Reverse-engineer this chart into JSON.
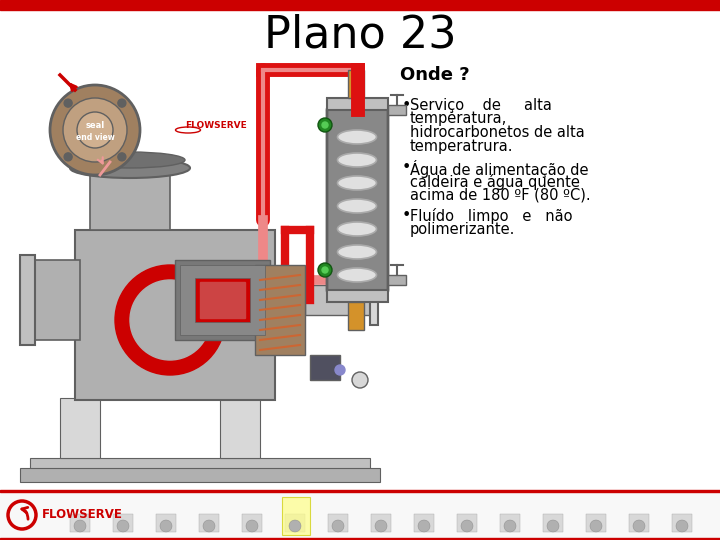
{
  "title": "Plano 23",
  "title_fontsize": 32,
  "title_color": "#000000",
  "subtitle": "Onde ?",
  "subtitle_fontsize": 13,
  "bullet1_line1": "Serviço    de     alta",
  "bullet1_line2": "temperatura,",
  "bullet1_line3": "hidrocarbonetos de alta",
  "bullet1_line4": "temperatrura.",
  "bullet2_line1": "Água de alimentação de",
  "bullet2_line2": "caldeira e água quente",
  "bullet2_line3": "acima de 180 ºF (80 ºC).",
  "bullet3_line1": "Fluído   limpo   e   não",
  "bullet3_line2": "polimerizante.",
  "bullet_fontsize": 10.5,
  "top_bar_color": "#cc0000",
  "background_color": "#ffffff",
  "red_color": "#cc0000",
  "flowserve_color": "#cc0000",
  "gray_dark": "#606060",
  "gray_mid": "#909090",
  "gray_light": "#c0c0c0",
  "gray_lighter": "#d8d8d8",
  "gray_pump": "#b0b0b0",
  "red_impeller": "#cc0000",
  "red_tube": "#dd1111",
  "red_tube_inner": "#ee8888",
  "orange_pipe": "#d4922a",
  "green_dot": "#336633",
  "tan_seal": "#a08060"
}
